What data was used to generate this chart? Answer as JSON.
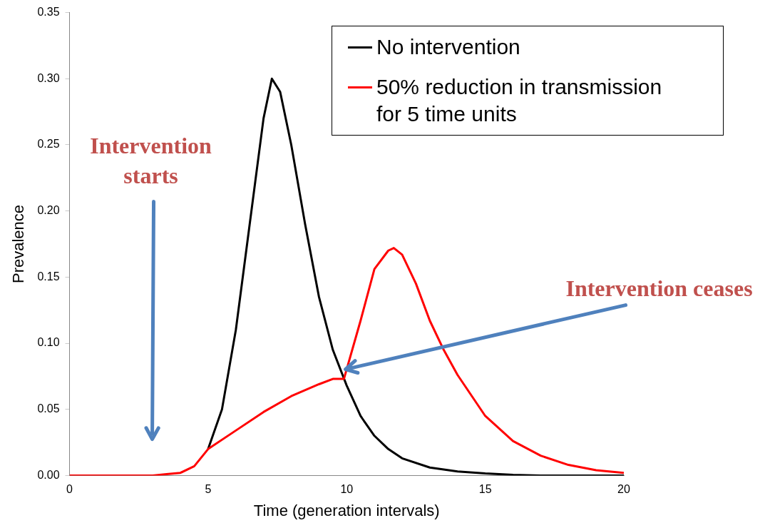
{
  "chart_data": {
    "type": "line",
    "xlabel": "Time (generation intervals)",
    "ylabel": "Prevalence",
    "xlim": [
      0,
      20
    ],
    "xticks": [
      0,
      5,
      10,
      15,
      20
    ],
    "ylim": [
      0,
      0.35
    ],
    "yticks": [
      {
        "value": 0,
        "label": "0.00"
      },
      {
        "value": 0.05,
        "label": "0.05"
      },
      {
        "value": 0.1,
        "label": "0.10"
      },
      {
        "value": 0.15,
        "label": "0.15"
      },
      {
        "value": 0.2,
        "label": "0.20"
      },
      {
        "value": 0.25,
        "label": "0.25"
      },
      {
        "value": 0.3,
        "label": "0.30"
      },
      {
        "value": 0.35,
        "label": "0.35"
      }
    ],
    "grid": false,
    "legend": "top right",
    "marker": "none",
    "line_style": "solid",
    "series": [
      {
        "name": "No intervention",
        "color": "#000000",
        "x": [
          5,
          5.5,
          6,
          6.5,
          7,
          7.3,
          7.6,
          8,
          8.5,
          9,
          9.5,
          10,
          10.5,
          11,
          11.5,
          12,
          13,
          14,
          15,
          16,
          17,
          20
        ],
        "values": [
          0.02,
          0.05,
          0.11,
          0.19,
          0.27,
          0.3,
          0.29,
          0.25,
          0.19,
          0.135,
          0.095,
          0.068,
          0.045,
          0.03,
          0.02,
          0.013,
          0.006,
          0.003,
          0.0015,
          0.0005,
          0,
          0
        ]
      },
      {
        "name": "50% reduction in transmission for 5 time units",
        "color": "#ff0000",
        "x": [
          0,
          3,
          3.5,
          4,
          4.5,
          5,
          6,
          7,
          8,
          9,
          9.5,
          9.9,
          10.5,
          11,
          11.5,
          11.7,
          12,
          12.5,
          13,
          13.5,
          14,
          15,
          16,
          17,
          18,
          19,
          20
        ],
        "values": [
          0,
          0,
          0.001,
          0.002,
          0.007,
          0.02,
          0.034,
          0.048,
          0.06,
          0.069,
          0.073,
          0.073,
          0.117,
          0.156,
          0.17,
          0.172,
          0.167,
          0.145,
          0.117,
          0.095,
          0.076,
          0.045,
          0.026,
          0.015,
          0.008,
          0.004,
          0.002
        ]
      }
    ],
    "annotations": [
      "Intervention starts",
      "Intervention ceases"
    ]
  }
}
